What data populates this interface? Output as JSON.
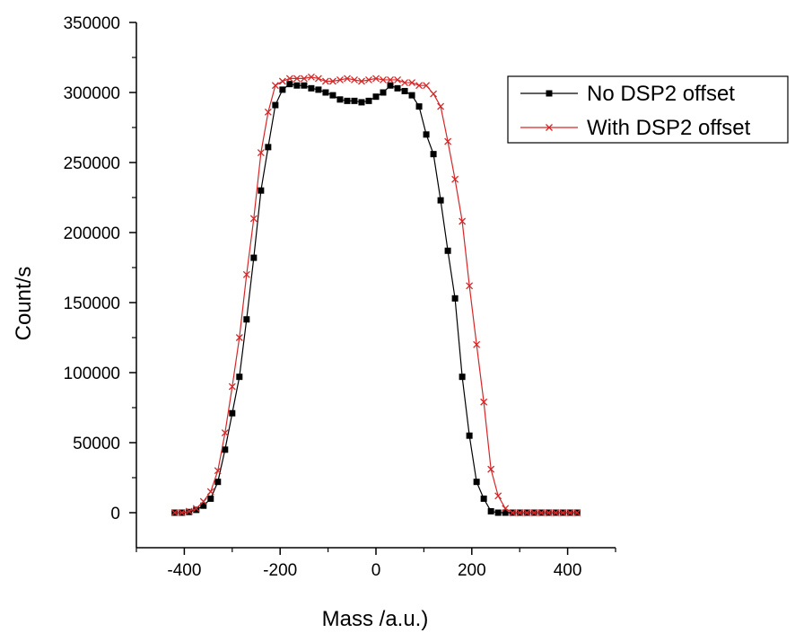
{
  "chart_data": {
    "type": "line",
    "xlabel": "Mass /a.u.)",
    "ylabel": "Count/s",
    "xlim": [
      -500,
      500
    ],
    "ylim": [
      -25000,
      350000
    ],
    "xticks": [
      -400,
      -200,
      0,
      200,
      400
    ],
    "yticks": [
      0,
      50000,
      100000,
      150000,
      200000,
      250000,
      300000,
      350000
    ],
    "grid": false,
    "legend_position": "top-right",
    "series": [
      {
        "name": "No DSP2 offset",
        "color": "#000000",
        "marker": "square",
        "x": [
          -420,
          -405,
          -390,
          -375,
          -360,
          -345,
          -330,
          -315,
          -300,
          -285,
          -270,
          -255,
          -240,
          -225,
          -210,
          -195,
          -180,
          -165,
          -150,
          -135,
          -120,
          -105,
          -90,
          -75,
          -60,
          -45,
          -30,
          -15,
          0,
          15,
          30,
          45,
          60,
          75,
          90,
          105,
          120,
          135,
          150,
          165,
          180,
          195,
          210,
          225,
          240,
          255,
          270,
          285,
          300,
          315,
          330,
          345,
          360,
          375,
          390,
          405,
          420
        ],
        "y": [
          0,
          0,
          500,
          2000,
          5000,
          10000,
          22000,
          45000,
          71000,
          97000,
          138000,
          182000,
          230000,
          261000,
          291000,
          302000,
          306000,
          305000,
          305000,
          303000,
          302000,
          300000,
          298000,
          295000,
          294000,
          294000,
          293000,
          294000,
          297000,
          300000,
          305000,
          303000,
          301000,
          298000,
          290000,
          270000,
          256000,
          223000,
          187000,
          153000,
          97000,
          55000,
          22000,
          10000,
          1000,
          0,
          0,
          0,
          0,
          0,
          0,
          0,
          0,
          0,
          0,
          0,
          0
        ]
      },
      {
        "name": "With DSP2 offset",
        "color": "#d62728",
        "marker": "x",
        "x": [
          -420,
          -405,
          -390,
          -375,
          -360,
          -345,
          -330,
          -315,
          -300,
          -285,
          -270,
          -255,
          -240,
          -225,
          -210,
          -195,
          -180,
          -165,
          -150,
          -135,
          -120,
          -105,
          -90,
          -75,
          -60,
          -45,
          -30,
          -15,
          0,
          15,
          30,
          45,
          60,
          75,
          90,
          105,
          120,
          135,
          150,
          165,
          180,
          195,
          210,
          225,
          240,
          255,
          270,
          285,
          300,
          315,
          330,
          345,
          360,
          375,
          390,
          405,
          420
        ],
        "y": [
          0,
          0,
          1000,
          3000,
          8000,
          15000,
          30000,
          57000,
          90000,
          125000,
          170000,
          210000,
          257000,
          286000,
          305000,
          308000,
          310000,
          310000,
          310000,
          311000,
          310000,
          308000,
          308000,
          309000,
          310000,
          309000,
          308000,
          309000,
          310000,
          309000,
          309000,
          309000,
          307000,
          307000,
          305000,
          305000,
          299000,
          290000,
          265000,
          238000,
          208000,
          162000,
          120000,
          79000,
          31000,
          12000,
          3000,
          0,
          0,
          0,
          0,
          0,
          0,
          0,
          0,
          0,
          0
        ]
      }
    ]
  }
}
